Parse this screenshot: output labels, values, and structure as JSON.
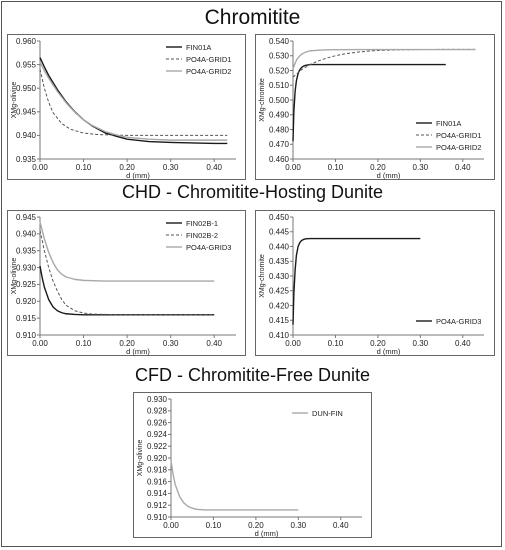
{
  "titles": {
    "section1": "Chromitite",
    "section2": "CHD - Chromitite-Hosting Dunite",
    "section3": "CFD - Chromitite-Free Dunite"
  },
  "chart_data": [
    {
      "id": "c1",
      "type": "line",
      "xlabel": "d (mm)",
      "ylabel": "XMg-olivine",
      "xlim": [
        0,
        0.45
      ],
      "ylim": [
        0.935,
        0.96
      ],
      "xticks": [
        "0.00",
        "0.10",
        "0.20",
        "0.30",
        "0.40"
      ],
      "yticks": [
        "0.935",
        "0.940",
        "0.945",
        "0.950",
        "0.955",
        "0.960"
      ],
      "legend": "top-right",
      "series": [
        {
          "name": "FIN01A",
          "color": "#1a1a1a",
          "dash": "",
          "width": 1.4,
          "x": [
            0,
            0.01,
            0.02,
            0.04,
            0.06,
            0.08,
            0.1,
            0.12,
            0.15,
            0.18,
            0.2,
            0.25,
            0.3,
            0.35,
            0.4,
            0.43
          ],
          "y": [
            0.9565,
            0.9545,
            0.9527,
            0.9497,
            0.9471,
            0.945,
            0.9433,
            0.942,
            0.9405,
            0.9397,
            0.9392,
            0.9387,
            0.9385,
            0.9384,
            0.9383,
            0.9383
          ]
        },
        {
          "name": "PO4A-GRID1",
          "color": "#555555",
          "dash": "3,2",
          "width": 1.0,
          "x": [
            0,
            0.01,
            0.02,
            0.03,
            0.05,
            0.07,
            0.1,
            0.13,
            0.16,
            0.2,
            0.25,
            0.3,
            0.35,
            0.4,
            0.43
          ],
          "y": [
            0.954,
            0.95,
            0.947,
            0.9448,
            0.9425,
            0.9413,
            0.9405,
            0.9402,
            0.9401,
            0.94,
            0.94,
            0.94,
            0.94,
            0.94,
            0.94
          ]
        },
        {
          "name": "PO4A-GRID2",
          "color": "#a8a8a8",
          "dash": "",
          "width": 1.4,
          "x": [
            0,
            0.01,
            0.02,
            0.04,
            0.06,
            0.08,
            0.1,
            0.12,
            0.15,
            0.18,
            0.2,
            0.25,
            0.3,
            0.35,
            0.4,
            0.43
          ],
          "y": [
            0.9555,
            0.9537,
            0.9521,
            0.9493,
            0.9469,
            0.9449,
            0.9433,
            0.9421,
            0.9408,
            0.94,
            0.9396,
            0.9392,
            0.939,
            0.939,
            0.939,
            0.939
          ]
        }
      ]
    },
    {
      "id": "c2",
      "type": "line",
      "xlabel": "d (mm)",
      "ylabel": "XMg-chromite",
      "xlim": [
        0,
        0.45
      ],
      "ylim": [
        0.46,
        0.54
      ],
      "xticks": [
        "0.00",
        "0.10",
        "0.20",
        "0.30",
        "0.40"
      ],
      "yticks": [
        "0.460",
        "0.470",
        "0.480",
        "0.490",
        "0.500",
        "0.510",
        "0.520",
        "0.530",
        "0.540"
      ],
      "legend": "bottom-right",
      "series": [
        {
          "name": "FIN01A",
          "color": "#1a1a1a",
          "dash": "",
          "width": 1.4,
          "x": [
            0,
            0.002,
            0.005,
            0.008,
            0.012,
            0.016,
            0.02,
            0.025,
            0.03,
            0.04,
            0.05,
            0.1,
            0.2,
            0.3,
            0.36
          ],
          "y": [
            0.472,
            0.492,
            0.506,
            0.513,
            0.518,
            0.5205,
            0.522,
            0.523,
            0.5235,
            0.524,
            0.524,
            0.524,
            0.524,
            0.524,
            0.524
          ]
        },
        {
          "name": "PO4A-GRID1",
          "color": "#555555",
          "dash": "3,2",
          "width": 1.0,
          "x": [
            0,
            0.02,
            0.04,
            0.06,
            0.08,
            0.1,
            0.12,
            0.15,
            0.18,
            0.2,
            0.25,
            0.3,
            0.35,
            0.4,
            0.43
          ],
          "y": [
            0.5155,
            0.5205,
            0.524,
            0.5265,
            0.5285,
            0.53,
            0.5312,
            0.5324,
            0.5332,
            0.5336,
            0.534,
            0.5342,
            0.5343,
            0.5343,
            0.5343
          ]
        },
        {
          "name": "PO4A-GRID2",
          "color": "#a8a8a8",
          "dash": "",
          "width": 1.4,
          "x": [
            0,
            0.005,
            0.01,
            0.02,
            0.03,
            0.04,
            0.06,
            0.08,
            0.1,
            0.15,
            0.2,
            0.3,
            0.4,
            0.43
          ],
          "y": [
            0.521,
            0.525,
            0.528,
            0.531,
            0.5325,
            0.5333,
            0.5338,
            0.534,
            0.5341,
            0.5342,
            0.5342,
            0.5342,
            0.5342,
            0.5342
          ]
        }
      ]
    },
    {
      "id": "c3",
      "type": "line",
      "xlabel": "d (mm)",
      "ylabel": "XMg-olivine",
      "xlim": [
        0,
        0.45
      ],
      "ylim": [
        0.91,
        0.945
      ],
      "xticks": [
        "0.00",
        "0.10",
        "0.20",
        "0.30",
        "0.40"
      ],
      "yticks": [
        "0.910",
        "0.915",
        "0.920",
        "0.925",
        "0.930",
        "0.935",
        "0.940",
        "0.945"
      ],
      "legend": "top-right",
      "series": [
        {
          "name": "FIN02B-1",
          "color": "#1a1a1a",
          "dash": "",
          "width": 1.4,
          "x": [
            0,
            0.005,
            0.01,
            0.02,
            0.03,
            0.04,
            0.05,
            0.06,
            0.08,
            0.1,
            0.15,
            0.2,
            0.3,
            0.4
          ],
          "y": [
            0.9305,
            0.927,
            0.9242,
            0.9205,
            0.9183,
            0.9172,
            0.9166,
            0.9163,
            0.9161,
            0.916,
            0.916,
            0.916,
            0.916,
            0.916
          ]
        },
        {
          "name": "FIN02B-2",
          "color": "#555555",
          "dash": "3,2",
          "width": 1.0,
          "x": [
            0,
            0.01,
            0.02,
            0.03,
            0.04,
            0.05,
            0.06,
            0.08,
            0.1,
            0.12,
            0.15,
            0.2,
            0.3,
            0.4
          ],
          "y": [
            0.941,
            0.935,
            0.93,
            0.926,
            0.923,
            0.9205,
            0.9188,
            0.9172,
            0.9165,
            0.9162,
            0.9161,
            0.916,
            0.916,
            0.916
          ]
        },
        {
          "name": "PO4A-GRID3",
          "color": "#a8a8a8",
          "dash": "",
          "width": 1.4,
          "x": [
            0,
            0.01,
            0.02,
            0.03,
            0.04,
            0.05,
            0.06,
            0.08,
            0.1,
            0.12,
            0.15,
            0.2,
            0.3,
            0.4
          ],
          "y": [
            0.9435,
            0.9385,
            0.9345,
            0.9315,
            0.9293,
            0.928,
            0.9272,
            0.9265,
            0.9262,
            0.9261,
            0.926,
            0.926,
            0.926,
            0.926
          ]
        }
      ]
    },
    {
      "id": "c4",
      "type": "line",
      "xlabel": "d (mm)",
      "ylabel": "XMg-chromite",
      "xlim": [
        0,
        0.45
      ],
      "ylim": [
        0.41,
        0.45
      ],
      "xticks": [
        "0.00",
        "0.10",
        "0.20",
        "0.30",
        "0.40"
      ],
      "yticks": [
        "0.410",
        "0.415",
        "0.420",
        "0.425",
        "0.430",
        "0.435",
        "0.440",
        "0.445",
        "0.450"
      ],
      "legend": "bottom-right",
      "series": [
        {
          "name": "PO4A-GRID3",
          "color": "#1a1a1a",
          "dash": "",
          "width": 1.4,
          "x": [
            0,
            0.002,
            0.005,
            0.008,
            0.012,
            0.016,
            0.02,
            0.025,
            0.03,
            0.04,
            0.05,
            0.1,
            0.2,
            0.3
          ],
          "y": [
            0.4135,
            0.424,
            0.432,
            0.437,
            0.44,
            0.4413,
            0.442,
            0.4424,
            0.4426,
            0.4427,
            0.4427,
            0.4427,
            0.4427,
            0.4427
          ]
        }
      ]
    },
    {
      "id": "c5",
      "type": "line",
      "xlabel": "d (mm)",
      "ylabel": "XMg-olivine",
      "xlim": [
        0,
        0.45
      ],
      "ylim": [
        0.91,
        0.93
      ],
      "xticks": [
        "0.00",
        "0.10",
        "0.20",
        "0.30",
        "0.40"
      ],
      "yticks": [
        "0.910",
        "0.912",
        "0.914",
        "0.916",
        "0.918",
        "0.920",
        "0.922",
        "0.924",
        "0.926",
        "0.928",
        "0.930"
      ],
      "legend": "top-right",
      "series": [
        {
          "name": "DUN-FIN",
          "color": "#a8a8a8",
          "dash": "",
          "width": 1.4,
          "x": [
            0,
            0.005,
            0.01,
            0.02,
            0.03,
            0.04,
            0.05,
            0.06,
            0.08,
            0.1,
            0.15,
            0.2,
            0.3
          ],
          "y": [
            0.9195,
            0.9172,
            0.9155,
            0.9135,
            0.9124,
            0.9118,
            0.9115,
            0.9113,
            0.9112,
            0.9112,
            0.9112,
            0.9112,
            0.9112
          ]
        }
      ]
    }
  ]
}
